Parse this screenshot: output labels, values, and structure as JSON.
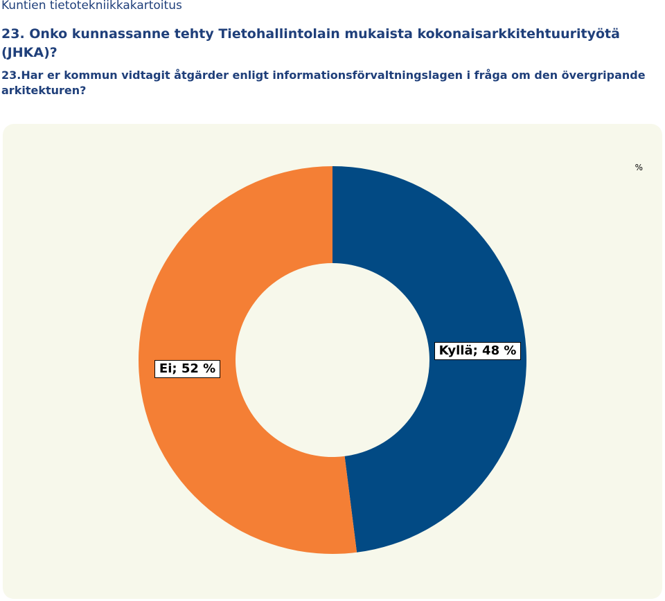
{
  "header": {
    "report_title": "Kuntien tietotekniikkakartoitus",
    "question_fi": "23. Onko kunnassanne tehty Tietohallintolain mukaista kokonaisarkkitehtuurityötä (JHKA)?",
    "question_sv": "23.Har er kommun vidtagit åtgärder enligt informationsförvaltningslagen i fråga om den övergripande arkitekturen?"
  },
  "chart_data": {
    "type": "pie",
    "style": "donut",
    "unit_label": "%",
    "start_angle_deg": 0,
    "direction": "clockwise",
    "series": [
      {
        "name": "",
        "categories": [
          "Kyllä",
          "Ei"
        ],
        "values": [
          48,
          52
        ]
      }
    ],
    "data_labels": [
      "Kyllä; 48 %",
      "Ei; 52 %"
    ],
    "colors": [
      "#024a84",
      "#f47f35"
    ],
    "background": "#f7f8eb",
    "legend": "none"
  }
}
